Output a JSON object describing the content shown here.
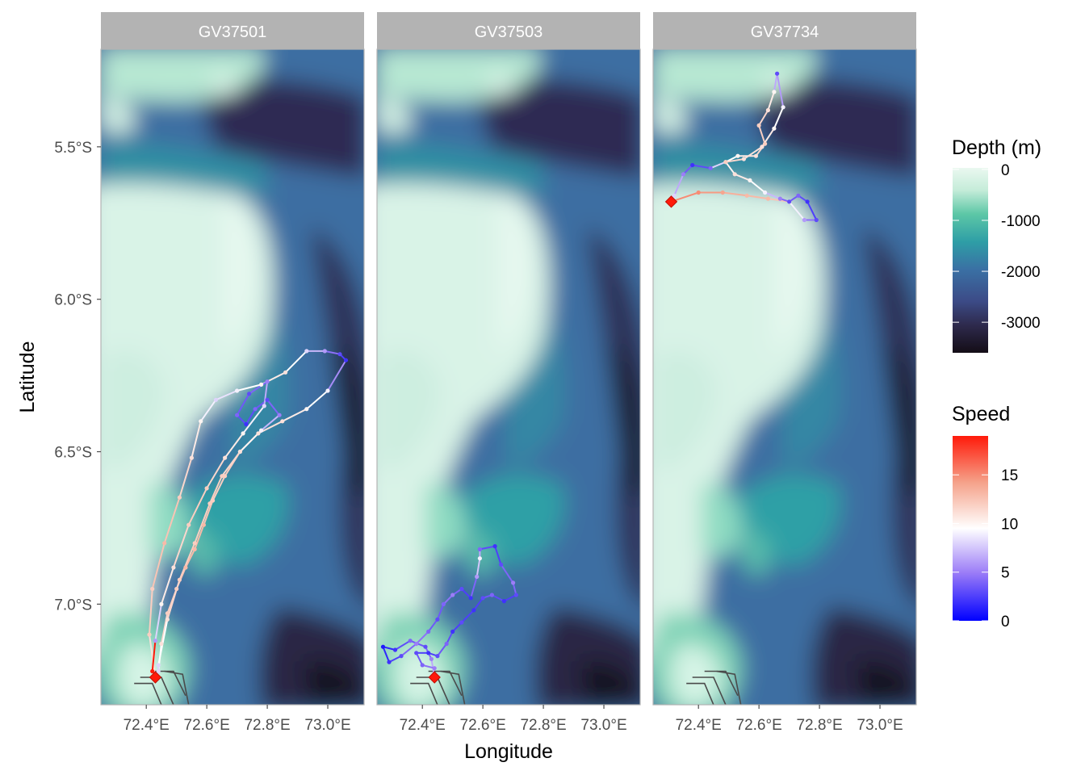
{
  "chart_data": {
    "type": "map",
    "xlabel": "Longitude",
    "ylabel": "Latitude",
    "xlim": [
      72.25,
      73.12
    ],
    "ylim": [
      -7.33,
      -5.18
    ],
    "x_ticks": [
      72.4,
      72.6,
      72.8,
      73.0
    ],
    "x_tick_labels": [
      "72.4°E",
      "72.6°E",
      "72.8°E",
      "73.0°E"
    ],
    "y_ticks": [
      -5.5,
      -6.0,
      -6.5,
      -7.0
    ],
    "y_tick_labels": [
      "5.5°S",
      "6.0°S",
      "6.5°S",
      "7.0°S"
    ],
    "panels": [
      {
        "name": "GV37501",
        "deploy": [
          72.43,
          -7.24
        ],
        "track": [
          [
            72.43,
            -7.24
          ],
          [
            72.41,
            -7.1
          ],
          [
            72.42,
            -6.95
          ],
          [
            72.46,
            -6.8
          ],
          [
            72.51,
            -6.65
          ],
          [
            72.55,
            -6.52
          ],
          [
            72.58,
            -6.4
          ],
          [
            72.63,
            -6.33
          ],
          [
            72.7,
            -6.3
          ],
          [
            72.78,
            -6.28
          ],
          [
            72.86,
            -6.24
          ],
          [
            72.93,
            -6.17
          ],
          [
            72.99,
            -6.17
          ],
          [
            73.04,
            -6.18
          ],
          [
            73.06,
            -6.2
          ],
          [
            73.0,
            -6.3
          ],
          [
            72.93,
            -6.36
          ],
          [
            72.85,
            -6.4
          ],
          [
            72.77,
            -6.44
          ],
          [
            72.71,
            -6.5
          ],
          [
            72.66,
            -6.58
          ],
          [
            72.62,
            -6.66
          ],
          [
            72.59,
            -6.74
          ],
          [
            72.56,
            -6.82
          ],
          [
            72.53,
            -6.88
          ],
          [
            72.5,
            -6.95
          ],
          [
            72.47,
            -7.03
          ],
          [
            72.45,
            -7.13
          ],
          [
            72.44,
            -7.22
          ],
          [
            72.44,
            -7.2
          ],
          [
            72.47,
            -7.05
          ],
          [
            72.51,
            -6.92
          ],
          [
            72.56,
            -6.8
          ],
          [
            72.61,
            -6.67
          ],
          [
            72.65,
            -6.58
          ],
          [
            72.71,
            -6.5
          ],
          [
            72.78,
            -6.43
          ],
          [
            72.84,
            -6.38
          ],
          [
            72.8,
            -6.33
          ],
          [
            72.76,
            -6.36
          ],
          [
            72.73,
            -6.41
          ],
          [
            72.7,
            -6.38
          ],
          [
            72.74,
            -6.31
          ],
          [
            72.8,
            -6.27
          ],
          [
            72.79,
            -6.35
          ],
          [
            72.72,
            -6.44
          ],
          [
            72.66,
            -6.52
          ],
          [
            72.6,
            -6.62
          ],
          [
            72.54,
            -6.74
          ],
          [
            72.49,
            -6.88
          ],
          [
            72.45,
            -7.0
          ],
          [
            72.43,
            -7.12
          ],
          [
            72.42,
            -7.22
          ]
        ],
        "speed": [
          10,
          12,
          12,
          13,
          12,
          11,
          10,
          8,
          9,
          10,
          11,
          8,
          6,
          3,
          2,
          9,
          10,
          11,
          11,
          12,
          12,
          12,
          13,
          13,
          13,
          12,
          12,
          11,
          8,
          8,
          11,
          12,
          12,
          12,
          12,
          11,
          9,
          5,
          3,
          4,
          2,
          4,
          3,
          5,
          8,
          10,
          11,
          12,
          12,
          11,
          10,
          6
        ]
      },
      {
        "name": "GV37503",
        "deploy": [
          72.44,
          -7.24
        ],
        "track": [
          [
            72.44,
            -7.24
          ],
          [
            72.43,
            -7.18
          ],
          [
            72.41,
            -7.14
          ],
          [
            72.36,
            -7.12
          ],
          [
            72.31,
            -7.15
          ],
          [
            72.27,
            -7.14
          ],
          [
            72.29,
            -7.19
          ],
          [
            72.33,
            -7.17
          ],
          [
            72.38,
            -7.13
          ],
          [
            72.42,
            -7.09
          ],
          [
            72.45,
            -7.05
          ],
          [
            72.47,
            -7.0
          ],
          [
            72.5,
            -6.97
          ],
          [
            72.53,
            -6.95
          ],
          [
            72.56,
            -6.98
          ],
          [
            72.58,
            -6.91
          ],
          [
            72.59,
            -6.85
          ],
          [
            72.59,
            -6.82
          ],
          [
            72.64,
            -6.81
          ],
          [
            72.66,
            -6.87
          ],
          [
            72.7,
            -6.93
          ],
          [
            72.71,
            -6.97
          ],
          [
            72.67,
            -6.99
          ],
          [
            72.63,
            -6.97
          ],
          [
            72.6,
            -6.98
          ],
          [
            72.57,
            -7.02
          ],
          [
            72.53,
            -7.06
          ],
          [
            72.5,
            -7.09
          ],
          [
            72.48,
            -7.13
          ],
          [
            72.45,
            -7.17
          ],
          [
            72.42,
            -7.16
          ],
          [
            72.38,
            -7.16
          ],
          [
            72.4,
            -7.2
          ],
          [
            72.44,
            -7.21
          ]
        ],
        "speed": [
          8,
          5,
          3,
          4,
          2,
          1,
          2,
          3,
          5,
          4,
          3,
          4,
          5,
          3,
          2,
          6,
          9,
          4,
          2,
          3,
          5,
          3,
          2,
          4,
          3,
          2,
          3,
          2,
          4,
          3,
          2,
          3,
          4,
          5
        ]
      },
      {
        "name": "GV37734",
        "deploy": [
          72.31,
          -5.68
        ],
        "track": [
          [
            72.31,
            -5.68
          ],
          [
            72.4,
            -5.65
          ],
          [
            72.48,
            -5.65
          ],
          [
            72.56,
            -5.66
          ],
          [
            72.63,
            -5.67
          ],
          [
            72.7,
            -5.68
          ],
          [
            72.75,
            -5.74
          ],
          [
            72.79,
            -5.74
          ],
          [
            72.76,
            -5.68
          ],
          [
            72.73,
            -5.66
          ],
          [
            72.7,
            -5.68
          ],
          [
            72.67,
            -5.67
          ],
          [
            72.62,
            -5.65
          ],
          [
            72.57,
            -5.61
          ],
          [
            72.52,
            -5.59
          ],
          [
            72.49,
            -5.55
          ],
          [
            72.53,
            -5.53
          ],
          [
            72.59,
            -5.53
          ],
          [
            72.62,
            -5.49
          ],
          [
            72.6,
            -5.43
          ],
          [
            72.63,
            -5.38
          ],
          [
            72.65,
            -5.32
          ],
          [
            72.66,
            -5.26
          ],
          [
            72.68,
            -5.37
          ],
          [
            72.65,
            -5.44
          ],
          [
            72.61,
            -5.5
          ],
          [
            72.55,
            -5.54
          ],
          [
            72.49,
            -5.55
          ],
          [
            72.44,
            -5.57
          ],
          [
            72.38,
            -5.56
          ],
          [
            72.35,
            -5.59
          ],
          [
            72.32,
            -5.66
          ]
        ],
        "speed": [
          15,
          15,
          14,
          13,
          13,
          12,
          6,
          3,
          2,
          4,
          3,
          5,
          9,
          10,
          11,
          9,
          10,
          11,
          12,
          12,
          11,
          10,
          3,
          9,
          10,
          11,
          11,
          12,
          4,
          2,
          5,
          8
        ]
      }
    ],
    "shoal_outlines": [
      [
        [
          72.36,
          -7.26
        ],
        [
          72.42,
          -7.26
        ],
        [
          72.45,
          -7.33
        ]
      ],
      [
        [
          72.38,
          -7.24
        ],
        [
          72.45,
          -7.24
        ],
        [
          72.49,
          -7.33
        ]
      ],
      [
        [
          72.42,
          -7.22
        ],
        [
          72.49,
          -7.22
        ],
        [
          72.53,
          -7.3
        ]
      ],
      [
        [
          72.46,
          -7.22
        ],
        [
          72.52,
          -7.23
        ],
        [
          72.54,
          -7.33
        ]
      ]
    ],
    "depth_legend": {
      "title": "Depth (m)",
      "range": [
        -3600,
        30
      ],
      "ticks": [
        0,
        -1000,
        -2000,
        -3000
      ],
      "tick_labels": [
        "0",
        "-1000",
        "-2000",
        "-3000"
      ]
    },
    "speed_legend": {
      "title": "Speed",
      "range": [
        0,
        19
      ],
      "ticks": [
        0,
        5,
        10,
        15
      ],
      "tick_labels": [
        "0",
        "5",
        "10",
        "15"
      ]
    }
  }
}
